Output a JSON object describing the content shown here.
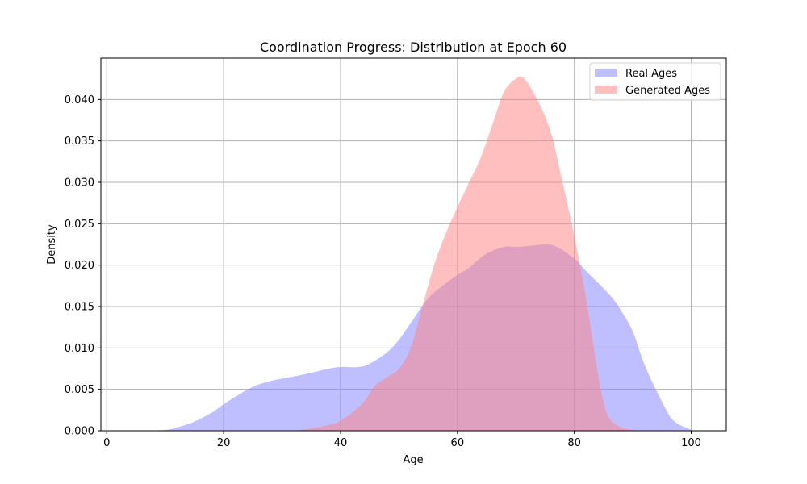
{
  "chart_data": {
    "type": "area",
    "title": "Coordination Progress: Distribution at Epoch 60",
    "xlabel": "Age",
    "ylabel": "Density",
    "xlim": [
      -1,
      106
    ],
    "ylim": [
      0,
      0.045
    ],
    "xticks": [
      0,
      20,
      40,
      60,
      80,
      100
    ],
    "yticks": [
      0.0,
      0.005,
      0.01,
      0.015,
      0.02,
      0.025,
      0.03,
      0.035,
      0.04
    ],
    "ytick_labels": [
      "0.000",
      "0.005",
      "0.010",
      "0.015",
      "0.020",
      "0.025",
      "0.030",
      "0.035",
      "0.040"
    ],
    "grid": true,
    "legend_position": "top-right",
    "series": [
      {
        "name": "Real Ages",
        "color": "#8080ff",
        "opacity": 0.5,
        "x": [
          0,
          5,
          10,
          12,
          15,
          18,
          20,
          22,
          25,
          28,
          30,
          33,
          35,
          38,
          40,
          43,
          45,
          48,
          50,
          52,
          55,
          58,
          60,
          62,
          65,
          68,
          70,
          72,
          75,
          77,
          80,
          82,
          85,
          87,
          88,
          90,
          92,
          95,
          97,
          100
        ],
        "y": [
          0,
          2e-05,
          0.0001,
          0.0004,
          0.0011,
          0.0022,
          0.0032,
          0.0041,
          0.0053,
          0.006,
          0.0063,
          0.0067,
          0.007,
          0.0075,
          0.0077,
          0.0077,
          0.0081,
          0.0095,
          0.011,
          0.013,
          0.016,
          0.0178,
          0.0188,
          0.0197,
          0.0214,
          0.0222,
          0.0222,
          0.0223,
          0.0225,
          0.0222,
          0.0208,
          0.0193,
          0.0172,
          0.0156,
          0.0145,
          0.012,
          0.008,
          0.0035,
          0.0012,
          0.0001
        ]
      },
      {
        "name": "Generated Ages",
        "color": "#ff8080",
        "opacity": 0.5,
        "x": [
          30,
          33,
          35,
          38,
          40,
          42,
          44,
          46,
          48,
          50,
          52,
          54,
          56,
          58,
          60,
          62,
          64,
          66,
          68,
          70,
          71,
          72,
          74,
          76,
          78,
          80,
          82,
          84,
          85,
          86,
          88,
          90,
          92
        ],
        "y": [
          0,
          0.0001,
          0.0003,
          0.0007,
          0.0012,
          0.0022,
          0.0035,
          0.0055,
          0.0065,
          0.0075,
          0.01,
          0.015,
          0.02,
          0.0238,
          0.027,
          0.03,
          0.033,
          0.037,
          0.041,
          0.0425,
          0.0427,
          0.042,
          0.0395,
          0.036,
          0.03,
          0.0235,
          0.016,
          0.007,
          0.0035,
          0.0015,
          0.0004,
          0.0001,
          0
        ]
      }
    ]
  }
}
